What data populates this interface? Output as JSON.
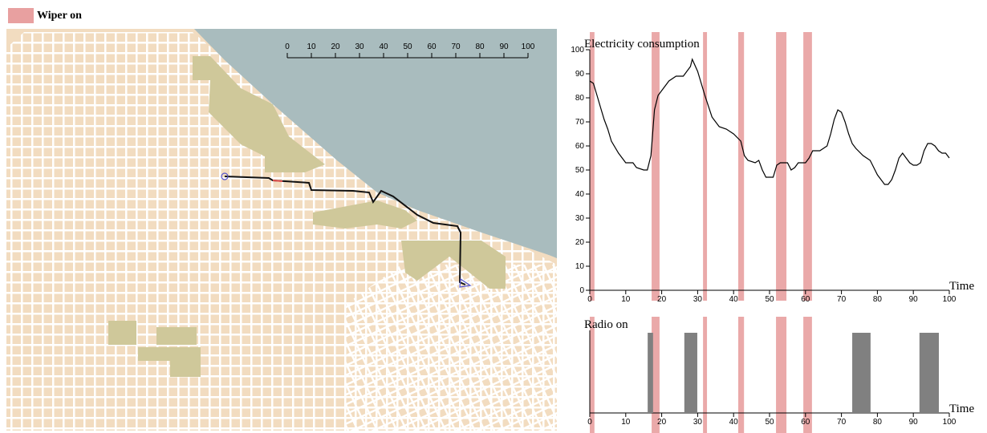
{
  "legend": {
    "label": "Wiper on",
    "color": "#e8a0a0"
  },
  "wiper_intervals": [
    [
      0,
      1.3
    ],
    [
      17.2,
      19.4
    ],
    [
      31.5,
      32.6
    ],
    [
      41.3,
      42.9
    ],
    [
      51.8,
      54.7
    ],
    [
      59.4,
      61.8
    ]
  ],
  "map": {
    "scale_ticks": [
      0,
      10,
      20,
      30,
      40,
      50,
      60,
      70,
      80,
      90,
      100
    ]
  },
  "chart_data": [
    {
      "type": "line",
      "title": "Electricity consumption",
      "x_label": "Time",
      "color": "#000000",
      "x": [
        0,
        1,
        2,
        3,
        4,
        5,
        6,
        8,
        10,
        12,
        13,
        15,
        16,
        17,
        18,
        19,
        20,
        22,
        24,
        26,
        28,
        28.5,
        30,
        32,
        34,
        36,
        38,
        40,
        42,
        43,
        44,
        46,
        47,
        48,
        49,
        50,
        51,
        52,
        53,
        54,
        55,
        56,
        57,
        58,
        59,
        60,
        61,
        62,
        64,
        66,
        67,
        68,
        69,
        70,
        71,
        72,
        73,
        74,
        76,
        78,
        79,
        80,
        81,
        82,
        83,
        84,
        85,
        86,
        87,
        88,
        89,
        90,
        91,
        92,
        93,
        94,
        95,
        96,
        97,
        98,
        99,
        100
      ],
      "values": [
        87,
        86,
        81,
        76,
        71,
        67,
        62,
        57,
        53,
        53,
        51,
        50,
        50,
        56,
        75,
        81,
        83,
        87,
        89,
        89,
        93,
        96,
        91,
        81,
        72,
        68,
        67,
        65,
        62,
        56,
        54,
        53,
        54,
        50,
        47,
        47,
        47,
        52,
        53,
        53,
        53,
        50,
        51,
        53,
        53,
        53,
        55,
        58,
        58,
        60,
        65,
        71,
        75,
        74,
        70,
        65,
        61,
        59,
        56,
        54,
        51,
        48,
        46,
        44,
        44,
        46,
        50,
        55,
        57,
        55,
        53,
        52,
        52,
        53,
        58,
        61,
        61,
        60,
        58,
        57,
        57,
        55
      ],
      "xlim": [
        0,
        100
      ],
      "ylim": [
        0,
        100
      ],
      "xticks": [
        0,
        10,
        20,
        30,
        40,
        50,
        60,
        70,
        80,
        90,
        100
      ],
      "yticks": [
        0,
        10,
        20,
        30,
        40,
        50,
        60,
        70,
        80,
        90,
        100
      ]
    },
    {
      "type": "timeline",
      "title": "Radio on",
      "x_label": "Time",
      "color": "#808080",
      "intervals": [
        [
          16.1,
          17.6
        ],
        [
          26.3,
          29.9
        ],
        [
          73,
          78.1
        ],
        [
          91.7,
          97.1
        ]
      ],
      "xlim": [
        0,
        100
      ],
      "xticks": [
        0,
        10,
        20,
        30,
        40,
        50,
        60,
        70,
        80,
        90,
        100
      ]
    }
  ]
}
